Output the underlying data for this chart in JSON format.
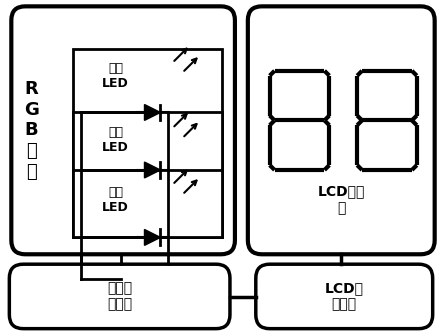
{
  "bg_color": "#ffffff",
  "line_color": "#000000",
  "font_color": "#000000",
  "rgb_label": "R\nG\nB\n背\n光",
  "led_labels": [
    "红光\nLED",
    "蓝光\nLED",
    "绿光\nLED"
  ],
  "lcd_label": "LCD液晶\n屏",
  "backlight_ctrl_label": "背光控\n制电路",
  "lcd_driver_label": "LCD驱\n动电路"
}
